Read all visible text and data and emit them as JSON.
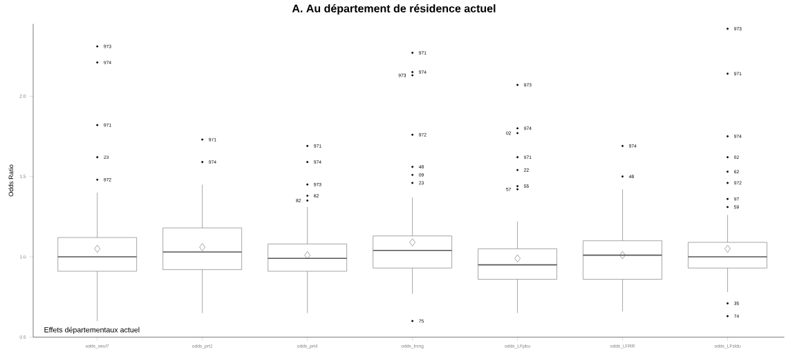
{
  "chart_data": {
    "type": "box",
    "title": "A. Au département de résidence actuel",
    "ylabel": "Odds Ratio",
    "categories": [
      "odds_seul7",
      "odds_prt2",
      "odds_prt4",
      "odds_lrsng",
      "odds_LFpbu",
      "odds_LFRR",
      "odds_LFsldu"
    ],
    "ylim": [
      0.5,
      2.45
    ],
    "yticks": [
      {
        "value": 0.5,
        "label": "0.5"
      },
      {
        "value": 1.0,
        "label": "1.0"
      },
      {
        "value": 1.5,
        "label": "1.5"
      },
      {
        "value": 2.0,
        "label": "2.0"
      }
    ],
    "color": "#555555",
    "boxes": [
      {
        "low": 0.6,
        "q1": 0.91,
        "median": 1.0,
        "q3": 1.12,
        "high": 1.4,
        "mean": 1.05
      },
      {
        "low": 0.65,
        "q1": 0.92,
        "median": 1.03,
        "q3": 1.18,
        "high": 1.45,
        "mean": 1.06
      },
      {
        "low": 0.65,
        "q1": 0.91,
        "median": 0.99,
        "q3": 1.08,
        "high": 1.31,
        "mean": 1.01
      },
      {
        "low": 0.77,
        "q1": 0.93,
        "median": 1.04,
        "q3": 1.13,
        "high": 1.37,
        "mean": 1.09
      },
      {
        "low": 0.65,
        "q1": 0.86,
        "median": 0.95,
        "q3": 1.05,
        "high": 1.22,
        "mean": 0.99
      },
      {
        "low": 0.66,
        "q1": 0.86,
        "median": 1.01,
        "q3": 1.1,
        "high": 1.42,
        "mean": 1.01
      },
      {
        "low": 0.78,
        "q1": 0.93,
        "median": 1.0,
        "q3": 1.09,
        "high": 1.26,
        "mean": 1.05
      }
    ],
    "series": [
      {
        "type": "scatter",
        "color": "#000000",
        "x": [
          "odds_seul7",
          "odds_seul7",
          "odds_seul7",
          "odds_seul7",
          "odds_seul7",
          "odds_prt2",
          "odds_prt2",
          "odds_prt4",
          "odds_prt4",
          "odds_prt4",
          "odds_prt4",
          "odds_prt4",
          "odds_lrsng",
          "odds_lrsng",
          "odds_lrsng",
          "odds_lrsng",
          "odds_lrsng",
          "odds_lrsng",
          "odds_lrsng",
          "odds_lrsng",
          "odds_LFpbu",
          "odds_LFpbu",
          "odds_LFpbu",
          "odds_LFpbu",
          "odds_LFpbu",
          "odds_LFpbu",
          "odds_LFpbu",
          "odds_LFRR",
          "odds_LFRR",
          "odds_LFsldu",
          "odds_LFsldu",
          "odds_LFsldu",
          "odds_LFsldu",
          "odds_LFsldu",
          "odds_LFsldu",
          "odds_LFsldu",
          "odds_LFsldu",
          "odds_LFsldu",
          "odds_LFsldu"
        ],
        "values": [
          2.31,
          2.21,
          1.82,
          1.62,
          1.48,
          1.73,
          1.59,
          1.69,
          1.59,
          1.45,
          1.38,
          1.35,
          2.27,
          2.15,
          2.13,
          1.76,
          1.56,
          1.51,
          1.46,
          0.6,
          2.07,
          1.8,
          1.77,
          1.62,
          1.54,
          1.44,
          1.42,
          1.69,
          1.5,
          2.42,
          2.14,
          1.75,
          1.62,
          1.53,
          1.46,
          1.36,
          1.31,
          0.71,
          0.63
        ]
      }
    ],
    "annotations": [
      "Effets départementaux actuel",
      {
        "text": "973",
        "x": "odds_seul7",
        "y": 2.31
      },
      {
        "text": "974",
        "x": "odds_seul7",
        "y": 2.21
      },
      {
        "text": "971",
        "x": "odds_seul7",
        "y": 1.82
      },
      {
        "text": "23",
        "x": "odds_seul7",
        "y": 1.62
      },
      {
        "text": "972",
        "x": "odds_seul7",
        "y": 1.48
      },
      {
        "text": "971",
        "x": "odds_prt2",
        "y": 1.73
      },
      {
        "text": "974",
        "x": "odds_prt2",
        "y": 1.59
      },
      {
        "text": "971",
        "x": "odds_prt4",
        "y": 1.69
      },
      {
        "text": "974",
        "x": "odds_prt4",
        "y": 1.59
      },
      {
        "text": "973",
        "x": "odds_prt4",
        "y": 1.45
      },
      {
        "text": "62",
        "x": "odds_prt4",
        "y": 1.38
      },
      {
        "text": "82",
        "x": "odds_prt4",
        "y": 1.35
      },
      {
        "text": "971",
        "x": "odds_lrsng",
        "y": 2.27
      },
      {
        "text": "974",
        "x": "odds_lrsng",
        "y": 2.15
      },
      {
        "text": "973",
        "x": "odds_lrsng",
        "y": 2.13
      },
      {
        "text": "972",
        "x": "odds_lrsng",
        "y": 1.76
      },
      {
        "text": "48",
        "x": "odds_lrsng",
        "y": 1.56
      },
      {
        "text": "09",
        "x": "odds_lrsng",
        "y": 1.51
      },
      {
        "text": "23",
        "x": "odds_lrsng",
        "y": 1.46
      },
      {
        "text": "75",
        "x": "odds_lrsng",
        "y": 0.6
      },
      {
        "text": "973",
        "x": "odds_LFpbu",
        "y": 2.07
      },
      {
        "text": "974",
        "x": "odds_LFpbu",
        "y": 1.8
      },
      {
        "text": "02",
        "x": "odds_LFpbu",
        "y": 1.77
      },
      {
        "text": "971",
        "x": "odds_LFpbu",
        "y": 1.62
      },
      {
        "text": "22",
        "x": "odds_LFpbu",
        "y": 1.54
      },
      {
        "text": "55",
        "x": "odds_LFpbu",
        "y": 1.44
      },
      {
        "text": "57",
        "x": "odds_LFpbu",
        "y": 1.42
      },
      {
        "text": "974",
        "x": "odds_LFRR",
        "y": 1.69
      },
      {
        "text": "48",
        "x": "odds_LFRR",
        "y": 1.5
      },
      {
        "text": "973",
        "x": "odds_LFsldu",
        "y": 2.42
      },
      {
        "text": "971",
        "x": "odds_LFsldu",
        "y": 2.14
      },
      {
        "text": "974",
        "x": "odds_LFsldu",
        "y": 1.75
      },
      {
        "text": "82",
        "x": "odds_LFsldu",
        "y": 1.62
      },
      {
        "text": "62",
        "x": "odds_LFsldu",
        "y": 1.53
      },
      {
        "text": "972",
        "x": "odds_LFsldu",
        "y": 1.46
      },
      {
        "text": "97",
        "x": "odds_LFsldu",
        "y": 1.36
      },
      {
        "text": "59",
        "x": "odds_LFsldu",
        "y": 1.31
      },
      {
        "text": "35",
        "x": "odds_LFsldu",
        "y": 0.71
      },
      {
        "text": "74",
        "x": "odds_LFsldu",
        "y": 0.63
      }
    ]
  }
}
